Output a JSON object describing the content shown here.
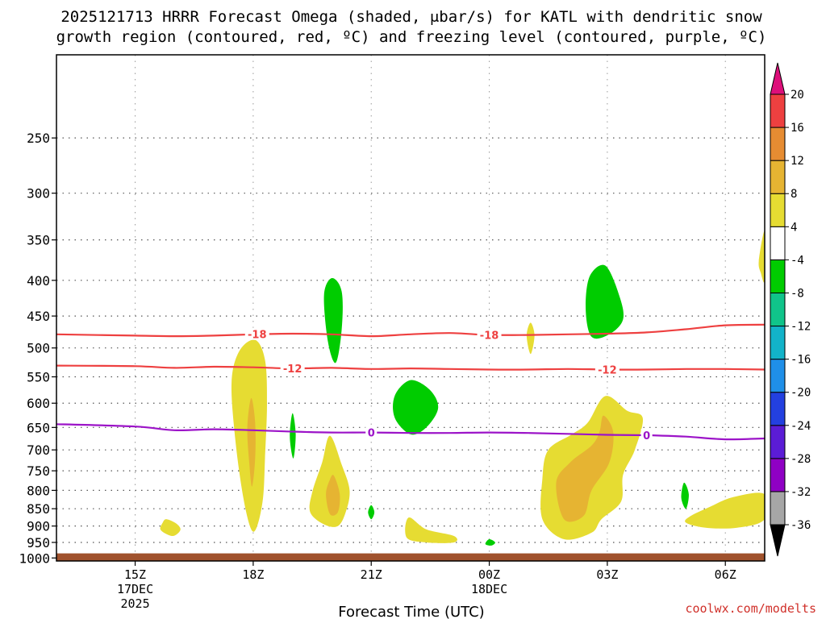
{
  "chart_data": {
    "type": "time-height contour",
    "title_line1": "2025121713 HRRR Forecast Omega (shaded, μbar/s) for KATL with dendritic snow",
    "title_line2": "growth region (contoured, red, ºC) and freezing level (contoured, purple, ºC)",
    "xlabel": "Forecast Time (UTC)",
    "credit": "coolwx.com/modelts",
    "x_range_hours": [
      13.0,
      31.0
    ],
    "y_range_hPa": [
      1010,
      190
    ],
    "x_ticks": [
      {
        "hour": 15,
        "label": "15Z",
        "sub1": "17DEC",
        "sub2": "2025"
      },
      {
        "hour": 18,
        "label": "18Z",
        "sub1": "",
        "sub2": ""
      },
      {
        "hour": 21,
        "label": "21Z",
        "sub1": "",
        "sub2": ""
      },
      {
        "hour": 24,
        "label": "00Z",
        "sub1": "18DEC",
        "sub2": ""
      },
      {
        "hour": 27,
        "label": "03Z",
        "sub1": "",
        "sub2": ""
      },
      {
        "hour": 30,
        "label": "06Z",
        "sub1": "",
        "sub2": ""
      }
    ],
    "y_ticks": [
      250,
      300,
      350,
      400,
      450,
      500,
      550,
      600,
      650,
      700,
      750,
      800,
      850,
      900,
      950,
      1000
    ],
    "ground": {
      "top_hPa": 985,
      "color": "#a0522d"
    },
    "colorbar": {
      "levels": [
        -36,
        -32,
        -28,
        -24,
        -20,
        -16,
        -12,
        -8,
        -4,
        4,
        8,
        12,
        16,
        20
      ],
      "colors": [
        "#a6a6a6",
        "#8f00c4",
        "#5b1cd6",
        "#2340e0",
        "#1f8fe8",
        "#12b3c9",
        "#10c48a",
        "#00cc00",
        "#ffffff",
        "#e6dc32",
        "#e6b432",
        "#e68c32",
        "#ee4040"
      ],
      "under_color": "#000000",
      "over_color": "#dd0f7a"
    },
    "contour_lines": [
      {
        "name": "dgz-minus18",
        "color": "#ee4040",
        "label": "-18",
        "label_positions_hours": [
          18.1,
          24.0
        ],
        "points": [
          [
            13.0,
            478
          ],
          [
            15,
            480
          ],
          [
            16,
            481
          ],
          [
            17,
            480
          ],
          [
            18,
            478
          ],
          [
            19,
            477
          ],
          [
            20,
            478
          ],
          [
            21,
            481
          ],
          [
            22,
            478
          ],
          [
            23,
            476
          ],
          [
            24,
            479
          ],
          [
            25,
            479
          ],
          [
            26,
            478
          ],
          [
            27,
            477
          ],
          [
            28,
            475
          ],
          [
            29,
            470
          ],
          [
            30,
            464
          ],
          [
            31,
            463
          ]
        ]
      },
      {
        "name": "dgz-minus12",
        "color": "#ee4040",
        "label": "-12",
        "label_positions_hours": [
          19.0,
          27.0
        ],
        "points": [
          [
            13.0,
            530
          ],
          [
            15,
            531
          ],
          [
            16,
            534
          ],
          [
            17,
            532
          ],
          [
            18,
            533
          ],
          [
            19,
            535
          ],
          [
            20,
            534
          ],
          [
            21,
            536
          ],
          [
            22,
            535
          ],
          [
            23,
            536
          ],
          [
            24,
            537
          ],
          [
            25,
            537
          ],
          [
            26,
            536
          ],
          [
            27,
            537
          ],
          [
            28,
            537
          ],
          [
            29,
            536
          ],
          [
            30,
            536
          ],
          [
            31,
            537
          ]
        ]
      },
      {
        "name": "freezing-level",
        "color": "#9c14c8",
        "label": "0",
        "label_positions_hours": [
          21.0,
          28.0
        ],
        "points": [
          [
            13.0,
            643
          ],
          [
            15,
            648
          ],
          [
            16,
            656
          ],
          [
            17,
            654
          ],
          [
            18,
            656
          ],
          [
            19,
            659
          ],
          [
            20,
            661
          ],
          [
            21,
            661
          ],
          [
            22,
            662
          ],
          [
            23,
            662
          ],
          [
            24,
            661
          ],
          [
            25,
            662
          ],
          [
            26,
            664
          ],
          [
            27,
            666
          ],
          [
            28,
            667
          ],
          [
            29,
            670
          ],
          [
            30,
            676
          ],
          [
            31,
            674
          ]
        ]
      }
    ],
    "omega_regions": [
      {
        "name": "omega-yellow-18z",
        "level": "4 to 8",
        "color": "#e6dc32",
        "points": [
          [
            18.05,
            487
          ],
          [
            18.3,
            520
          ],
          [
            18.35,
            600
          ],
          [
            18.3,
            720
          ],
          [
            18.25,
            820
          ],
          [
            18.1,
            900
          ],
          [
            17.95,
            910
          ],
          [
            17.75,
            820
          ],
          [
            17.55,
            680
          ],
          [
            17.45,
            560
          ],
          [
            17.65,
            505
          ]
        ]
      },
      {
        "name": "omega-orange-18z",
        "level": "8 to 12",
        "color": "#e6b432",
        "points": [
          [
            17.95,
            590
          ],
          [
            18.05,
            640
          ],
          [
            18.05,
            720
          ],
          [
            17.97,
            790
          ],
          [
            17.9,
            730
          ],
          [
            17.85,
            650
          ]
        ]
      },
      {
        "name": "omega-yellow-20z",
        "level": "4 to 8",
        "color": "#e6dc32",
        "points": [
          [
            19.95,
            668
          ],
          [
            20.25,
            735
          ],
          [
            20.45,
            800
          ],
          [
            20.35,
            860
          ],
          [
            20.15,
            900
          ],
          [
            19.8,
            895
          ],
          [
            19.45,
            860
          ],
          [
            19.5,
            805
          ],
          [
            19.75,
            730
          ]
        ]
      },
      {
        "name": "omega-orange-20z",
        "level": "8 to 12",
        "color": "#e6b432",
        "points": [
          [
            20.05,
            762
          ],
          [
            20.2,
            810
          ],
          [
            20.15,
            860
          ],
          [
            19.95,
            865
          ],
          [
            19.85,
            810
          ],
          [
            19.95,
            772
          ]
        ]
      },
      {
        "name": "omega-yellow-16z",
        "level": "4 to 8",
        "color": "#e6dc32",
        "points": [
          [
            15.8,
            880
          ],
          [
            16.05,
            893
          ],
          [
            16.15,
            912
          ],
          [
            15.95,
            930
          ],
          [
            15.65,
            912
          ],
          [
            15.7,
            890
          ]
        ]
      },
      {
        "name": "omega-yellow-22z",
        "level": "4 to 8",
        "color": "#e6dc32",
        "points": [
          [
            21.95,
            875
          ],
          [
            22.4,
            910
          ],
          [
            23.1,
            930
          ],
          [
            23.1,
            950
          ],
          [
            22.4,
            950
          ],
          [
            21.9,
            935
          ]
        ]
      },
      {
        "name": "omega-yellow-0030z",
        "level": "4 to 8",
        "color": "#e6dc32",
        "points": [
          [
            25.05,
            460
          ],
          [
            25.15,
            480
          ],
          [
            25.05,
            510
          ],
          [
            24.95,
            480
          ]
        ]
      },
      {
        "name": "omega-yellow-03z",
        "level": "4 to 8",
        "color": "#e6dc32",
        "points": [
          [
            26.95,
            586
          ],
          [
            27.5,
            615
          ],
          [
            27.9,
            630
          ],
          [
            27.7,
            700
          ],
          [
            27.4,
            760
          ],
          [
            27.35,
            830
          ],
          [
            26.85,
            880
          ],
          [
            26.6,
            920
          ],
          [
            25.9,
            940
          ],
          [
            25.35,
            880
          ],
          [
            25.35,
            770
          ],
          [
            25.5,
            700
          ],
          [
            26.1,
            665
          ],
          [
            26.5,
            640
          ]
        ]
      },
      {
        "name": "omega-orange-03z",
        "level": "8 to 12",
        "color": "#e6b432",
        "points": [
          [
            26.9,
            625
          ],
          [
            27.15,
            660
          ],
          [
            27.05,
            730
          ],
          [
            26.6,
            800
          ],
          [
            26.4,
            870
          ],
          [
            25.9,
            880
          ],
          [
            25.7,
            780
          ],
          [
            26.05,
            730
          ],
          [
            26.6,
            690
          ],
          [
            26.8,
            660
          ]
        ]
      },
      {
        "name": "omega-yellow-06z",
        "level": "4 to 8",
        "color": "#e6dc32",
        "points": [
          [
            31.0,
            810
          ],
          [
            31.0,
            880
          ],
          [
            30.3,
            905
          ],
          [
            29.5,
            905
          ],
          [
            29.0,
            890
          ],
          [
            29.1,
            872
          ],
          [
            29.6,
            845
          ],
          [
            30.2,
            818
          ]
        ]
      },
      {
        "name": "omega-yellow-edge",
        "level": "4 to 8",
        "color": "#e6dc32",
        "points": [
          [
            30.85,
            375
          ],
          [
            31.0,
            340
          ],
          [
            31.0,
            400
          ],
          [
            30.9,
            390
          ]
        ]
      },
      {
        "name": "omega-green-20z",
        "level": "-8 to -4",
        "color": "#00cc00",
        "points": [
          [
            20.0,
            397
          ],
          [
            20.25,
            415
          ],
          [
            20.25,
            470
          ],
          [
            20.1,
            525
          ],
          [
            19.9,
            490
          ],
          [
            19.8,
            420
          ]
        ]
      },
      {
        "name": "omega-green-22z",
        "level": "-8 to -4",
        "color": "#00cc00",
        "points": [
          [
            22.0,
            556
          ],
          [
            22.5,
            575
          ],
          [
            22.7,
            610
          ],
          [
            22.4,
            650
          ],
          [
            22.0,
            665
          ],
          [
            21.6,
            630
          ],
          [
            21.6,
            585
          ]
        ]
      },
      {
        "name": "omega-green-03z",
        "level": "-8 to -4",
        "color": "#00cc00",
        "points": [
          [
            26.95,
            381
          ],
          [
            27.3,
            420
          ],
          [
            27.4,
            455
          ],
          [
            27.05,
            478
          ],
          [
            26.6,
            482
          ],
          [
            26.45,
            440
          ],
          [
            26.55,
            395
          ]
        ]
      },
      {
        "name": "omega-green-19z",
        "level": "-8 to -4",
        "color": "#00cc00",
        "points": [
          [
            19.0,
            620
          ],
          [
            19.08,
            665
          ],
          [
            19.02,
            720
          ],
          [
            18.93,
            670
          ]
        ]
      },
      {
        "name": "omega-green-21z",
        "level": "-8 to -4",
        "color": "#00cc00",
        "points": [
          [
            21.0,
            840
          ],
          [
            21.08,
            860
          ],
          [
            21.0,
            880
          ],
          [
            20.92,
            860
          ]
        ]
      },
      {
        "name": "omega-green-04z",
        "level": "-8 to -4",
        "color": "#00cc00",
        "points": [
          [
            28.95,
            780
          ],
          [
            29.07,
            810
          ],
          [
            29.0,
            850
          ],
          [
            28.88,
            820
          ]
        ]
      },
      {
        "name": "omega-green-0010z",
        "level": "-8 to -4",
        "color": "#00cc00",
        "points": [
          [
            24.0,
            940
          ],
          [
            24.15,
            950
          ],
          [
            24.05,
            960
          ],
          [
            23.9,
            955
          ]
        ]
      }
    ]
  }
}
